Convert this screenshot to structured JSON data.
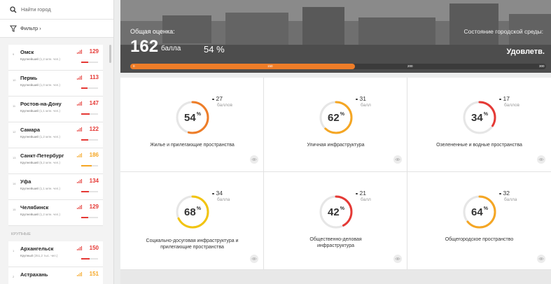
{
  "search": {
    "placeholder": "Найти город",
    "icon": "search-icon"
  },
  "filter": {
    "label": "Фильтр",
    "caret": "›",
    "icon": "filter-icon"
  },
  "cities": [
    {
      "rank": "9",
      "name": "Омск",
      "category": "Крупнейший",
      "population": "(1,2 млн. чел.)",
      "score": "129",
      "color": "#e53935",
      "level": 0.43
    },
    {
      "rank": "10",
      "name": "Пермь",
      "category": "Крупнейший",
      "population": "(1,0 млн. чел.)",
      "score": "113",
      "color": "#e53935",
      "level": 0.38
    },
    {
      "rank": "11",
      "name": "Ростов-на-Дону",
      "category": "Крупнейший",
      "population": "(1,1 млн. чел.)",
      "score": "147",
      "color": "#e53935",
      "level": 0.49
    },
    {
      "rank": "12",
      "name": "Самара",
      "category": "Крупнейший",
      "population": "(1,2 млн. чел.)",
      "score": "122",
      "color": "#e53935",
      "level": 0.41
    },
    {
      "rank": "13",
      "name": "Санкт-Петербург",
      "category": "Крупнейший",
      "population": "(5,2 млн. чел.)",
      "score": "186",
      "color": "#f5a623",
      "level": 0.62
    },
    {
      "rank": "14",
      "name": "Уфа",
      "category": "Крупнейший",
      "population": "(1,1 млн. чел.)",
      "score": "134",
      "color": "#e53935",
      "level": 0.45
    },
    {
      "rank": "15",
      "name": "Челябинск",
      "category": "Крупнейший",
      "population": "(1,2 млн. чел.)",
      "score": "129",
      "color": "#e53935",
      "level": 0.43
    }
  ],
  "group_label": "КРУПНЫЕ",
  "cities2": [
    {
      "rank": "1",
      "name": "Архангельск",
      "category": "Крупный",
      "population": "(351,2 тыс. чел.)",
      "score": "150",
      "color": "#e53935",
      "level": 0.5
    },
    {
      "rank": "2",
      "name": "Астрахань",
      "category": "",
      "population": "",
      "score": "151",
      "color": "#f5a623",
      "level": 0.5
    }
  ],
  "hero": {
    "overall_label": "Общая оценка:",
    "score": "162",
    "score_unit": "балла",
    "percent": "54 %",
    "state_label": "Состояние городской среды:",
    "state_value": "Удовлетв.",
    "progress": 0.54,
    "ticks": [
      "0",
      "150",
      "200",
      "300"
    ]
  },
  "cards": [
    {
      "percent": "54",
      "points": "27",
      "unit": "баллов",
      "title": "Жилье и прилегающие пространства",
      "color": "#ee7d28",
      "level": 0.54
    },
    {
      "percent": "62",
      "points": "31",
      "unit": "балл",
      "title": "Уличная инфраструктура",
      "color": "#f5a623",
      "level": 0.62
    },
    {
      "percent": "34",
      "points": "17",
      "unit": "баллов",
      "title": "Озелененные и водные пространства",
      "color": "#e53935",
      "level": 0.34
    },
    {
      "percent": "68",
      "points": "34",
      "unit": "балла",
      "title": "Социально-досуговая инфраструктура и прилегающие пространства",
      "color": "#f2c40f",
      "level": 0.68
    },
    {
      "percent": "42",
      "points": "21",
      "unit": "балл",
      "title": "Общественно-деловая инфраструктура",
      "color": "#e53935",
      "level": 0.42
    },
    {
      "percent": "64",
      "points": "32",
      "unit": "балла",
      "title": "Общегородское пространство",
      "color": "#f5a623",
      "level": 0.64
    }
  ],
  "colors": {
    "accent": "#ee7d28",
    "red": "#e53935",
    "yellow": "#f2c40f"
  }
}
